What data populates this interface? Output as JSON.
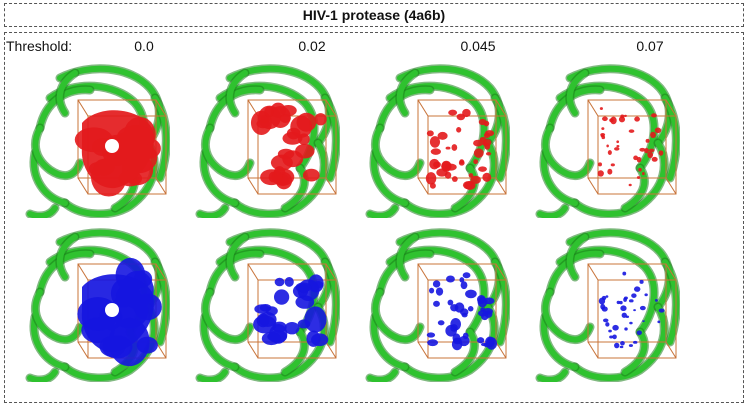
{
  "header": {
    "title": "HIV-1 protease (4a6b)"
  },
  "threshold": {
    "label": "Threshold:",
    "values": [
      "0.0",
      "0.02",
      "0.045",
      "0.07"
    ]
  },
  "rows": [
    {
      "name": "red-density",
      "color": "#e31a1c"
    },
    {
      "name": "blue-density",
      "color": "#1616e0"
    }
  ],
  "protein_color": "#2fc22f",
  "box_color": "#c8743a"
}
